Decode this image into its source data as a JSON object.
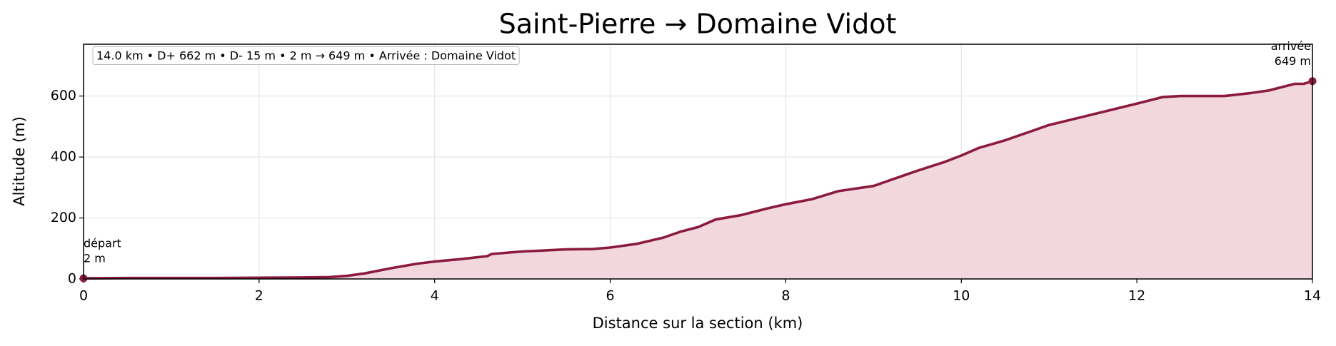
{
  "chart_data": {
    "type": "area",
    "title": "Saint-Pierre → Domaine Vidot",
    "xlabel": "Distance sur la section (km)",
    "ylabel": "Altitude (m)",
    "info": "14.0 km • D+ 662 m • D- 15 m • 2 m → 649 m • Arrivée : Domaine Vidot",
    "start_label": [
      "départ",
      "2 m"
    ],
    "end_label": [
      "arrivée",
      "649 m"
    ],
    "color": "#8b1a3e",
    "fill": "#f2d7df",
    "grid": true,
    "xlim": [
      0,
      14
    ],
    "ylim": [
      0,
      770
    ],
    "xticks": [
      0,
      2,
      4,
      6,
      8,
      10,
      12,
      14
    ],
    "yticks": [
      0,
      200,
      400,
      600
    ],
    "x": [
      0,
      0.5,
      1,
      1.5,
      2,
      2.5,
      2.8,
      3,
      3.2,
      3.5,
      3.8,
      4,
      4.3,
      4.6,
      4.65,
      5,
      5.5,
      5.8,
      6,
      6.3,
      6.6,
      6.8,
      7,
      7.2,
      7.5,
      7.8,
      8,
      8.3,
      8.6,
      9,
      9.2,
      9.5,
      9.8,
      10,
      10.2,
      10.5,
      10.8,
      11,
      11.5,
      12,
      12.3,
      12.5,
      13,
      13.3,
      13.5,
      13.8,
      13.9,
      14
    ],
    "values": [
      2,
      3,
      3,
      3,
      4,
      5,
      6,
      10,
      18,
      35,
      50,
      57,
      65,
      75,
      82,
      90,
      97,
      98,
      103,
      115,
      135,
      155,
      170,
      195,
      210,
      232,
      245,
      262,
      288,
      305,
      325,
      355,
      383,
      405,
      430,
      455,
      485,
      505,
      540,
      575,
      597,
      600,
      600,
      610,
      618,
      640,
      640,
      649
    ]
  }
}
